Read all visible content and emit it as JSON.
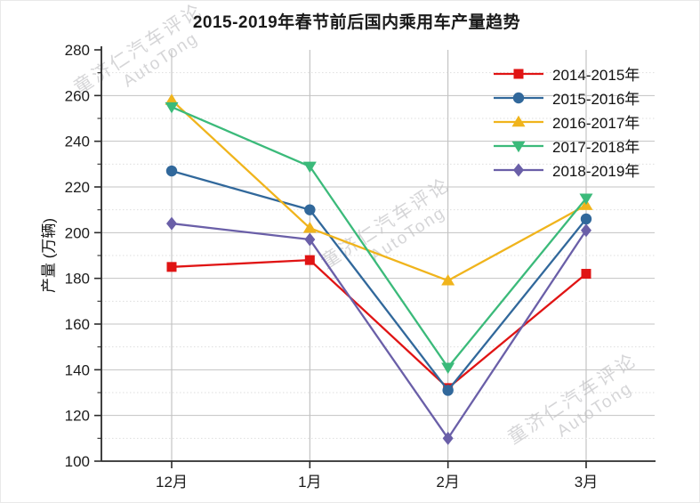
{
  "title": "2015-2019年春节前后国内乘用车产量趋势",
  "watermark": {
    "line1": "童济仁汽车评论",
    "line2": "AutoTong"
  },
  "chart_data": {
    "type": "line",
    "title": "2015-2019年春节前后国内乘用车产量趋势",
    "categories": [
      "12月",
      "1月",
      "2月",
      "3月"
    ],
    "series": [
      {
        "name": "2014-2015年",
        "marker": "square",
        "color": "#e01414",
        "values": [
          185,
          188,
          132,
          182
        ]
      },
      {
        "name": "2015-2016年",
        "marker": "circle",
        "color": "#31689b",
        "values": [
          227,
          210,
          131,
          206
        ]
      },
      {
        "name": "2016-2017年",
        "marker": "triangle-up",
        "color": "#f0b41c",
        "values": [
          258,
          202,
          179,
          212
        ]
      },
      {
        "name": "2017-2018年",
        "marker": "triangle-down",
        "color": "#3bba7a",
        "values": [
          255,
          229,
          141,
          215
        ]
      },
      {
        "name": "2018-2019年",
        "marker": "diamond",
        "color": "#6a5fa8",
        "values": [
          204,
          197,
          110,
          201
        ]
      }
    ],
    "xlabel": "",
    "ylabel": "产量 (万辆)",
    "ylim": [
      100,
      280
    ],
    "ytick_major": 20,
    "ytick_minor": 10,
    "grid": true,
    "legend_position": "top-right-inside",
    "axis_color": "#2b2b2b",
    "grid_major_color": "#c3c3c3",
    "grid_minor_color": "#dedede",
    "tick_label_color": "#1c1c1c"
  }
}
